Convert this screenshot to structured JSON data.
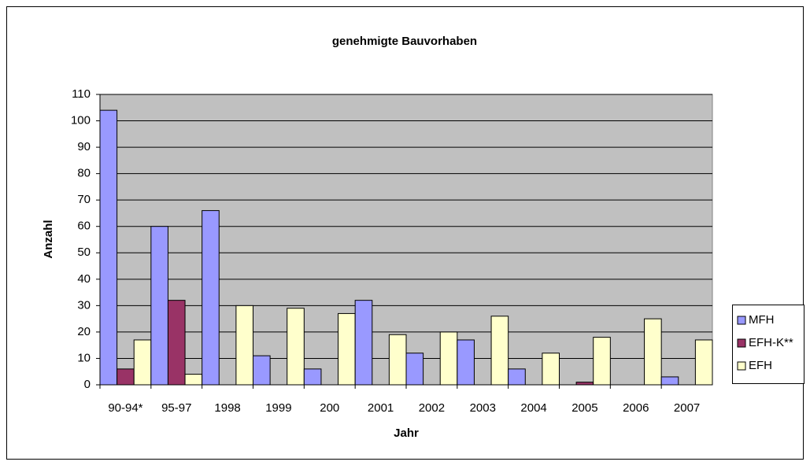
{
  "chart_data": {
    "type": "bar",
    "title": "genehmigte Bauvorhaben",
    "y_label": "Anzahl",
    "x_label": "Jahr",
    "categories": [
      "90-94*",
      "95-97",
      "1998",
      "1999",
      "200",
      "2001",
      "2002",
      "2003",
      "2004",
      "2005",
      "2006",
      "2007"
    ],
    "series": [
      {
        "name": "MFH",
        "color": "#9999ff",
        "values": [
          104,
          60,
          66,
          11,
          6,
          32,
          12,
          17,
          6,
          0,
          0,
          3
        ]
      },
      {
        "name": "EFH-K**",
        "color": "#993366",
        "values": [
          6,
          32,
          0,
          0,
          0,
          0,
          0,
          0,
          0,
          1,
          0,
          0
        ]
      },
      {
        "name": "EFH",
        "color": "#ffffcc",
        "values": [
          17,
          4,
          30,
          29,
          27,
          19,
          20,
          26,
          12,
          18,
          25,
          17
        ]
      }
    ],
    "ylim": [
      0,
      110
    ],
    "yticks": [
      0,
      10,
      20,
      30,
      40,
      50,
      60,
      70,
      80,
      90,
      100,
      110
    ],
    "grid": true,
    "legend": "right"
  }
}
